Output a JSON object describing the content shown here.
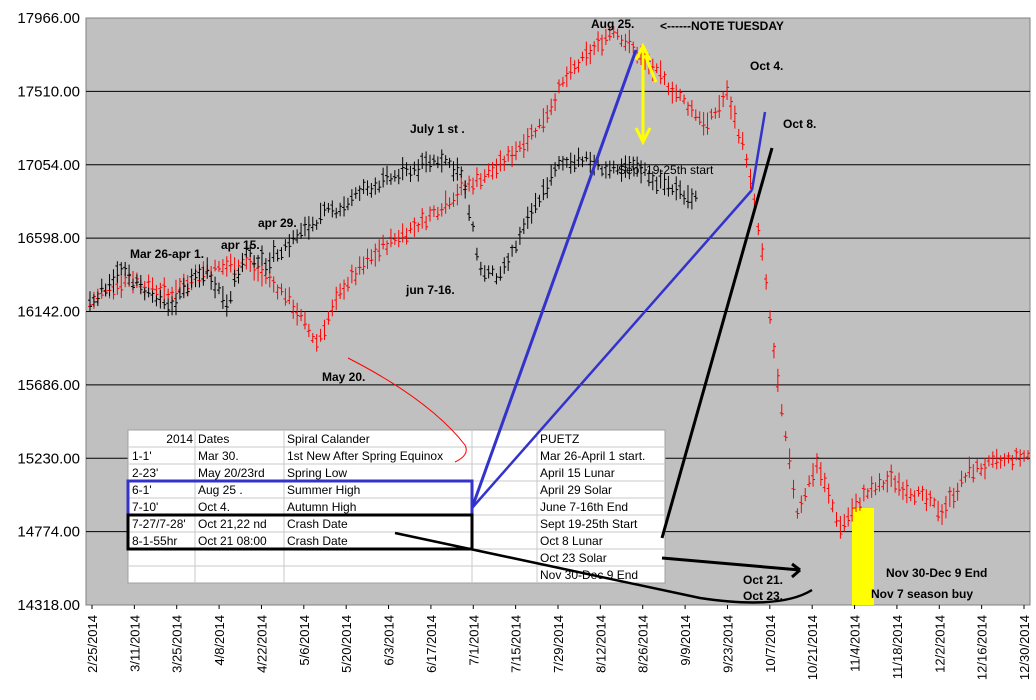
{
  "chart_data": {
    "type": "ohlc",
    "y_ticks": [
      "17966.00",
      "17510.00",
      "17054.00",
      "16598.00",
      "16142.00",
      "15686.00",
      "15230.00",
      "14774.00",
      "14318.00"
    ],
    "ylim": [
      14318,
      17966
    ],
    "x_ticks": [
      "2/25/2014",
      "3/11/2014",
      "3/25/2014",
      "4/8/2014",
      "4/22/2014",
      "5/6/2014",
      "5/20/2014",
      "6/3/2014",
      "6/17/2014",
      "7/1/2014",
      "7/15/2014",
      "7/29/2014",
      "8/12/2014",
      "8/26/2014",
      "9/9/2014",
      "9/23/2014",
      "10/7/2014",
      "10/21/2014",
      "11/4/2014",
      "11/18/2014",
      "12/2/2014",
      "12/16/2014",
      "12/30/2014"
    ],
    "xlim": [
      "2014-02-25",
      "2014-12-30"
    ],
    "grid": true,
    "series": [
      {
        "color": "#ff0000",
        "trading_days": [
          "2014-02-25",
          "2014-12-30"
        ],
        "anchors": [
          [
            0,
            16200
          ],
          [
            10,
            16350
          ],
          [
            20,
            16250
          ],
          [
            30,
            16400
          ],
          [
            40,
            16450
          ],
          [
            50,
            16250
          ],
          [
            58,
            15950
          ],
          [
            65,
            16300
          ],
          [
            75,
            16550
          ],
          [
            85,
            16700
          ],
          [
            95,
            16900
          ],
          [
            105,
            17050
          ],
          [
            115,
            17300
          ],
          [
            122,
            17600
          ],
          [
            130,
            17800
          ],
          [
            134,
            17900
          ],
          [
            142,
            17700
          ],
          [
            150,
            17500
          ],
          [
            158,
            17300
          ],
          [
            163,
            17500
          ],
          [
            168,
            17100
          ],
          [
            172,
            16500
          ],
          [
            177,
            15500
          ],
          [
            181,
            14900
          ],
          [
            186,
            15200
          ],
          [
            192,
            14800
          ],
          [
            198,
            15000
          ],
          [
            205,
            15100
          ],
          [
            212,
            15000
          ],
          [
            218,
            14900
          ],
          [
            225,
            15150
          ],
          [
            232,
            15200
          ],
          [
            240,
            15250
          ]
        ]
      },
      {
        "color": "#000000",
        "trading_days": [
          "2014-02-25",
          "2014-10-08"
        ],
        "anchors": [
          [
            0,
            16200
          ],
          [
            8,
            16400
          ],
          [
            15,
            16250
          ],
          [
            20,
            16150
          ],
          [
            25,
            16300
          ],
          [
            30,
            16400
          ],
          [
            35,
            16200
          ],
          [
            40,
            16500
          ],
          [
            45,
            16450
          ],
          [
            50,
            16550
          ],
          [
            55,
            16650
          ],
          [
            60,
            16750
          ],
          [
            65,
            16800
          ],
          [
            70,
            16900
          ],
          [
            75,
            16950
          ],
          [
            80,
            17000
          ],
          [
            85,
            17050
          ],
          [
            90,
            17100
          ],
          [
            95,
            17000
          ],
          [
            100,
            16400
          ],
          [
            105,
            16350
          ],
          [
            110,
            16600
          ],
          [
            115,
            16850
          ],
          [
            120,
            17050
          ],
          [
            125,
            17100
          ],
          [
            130,
            17050
          ],
          [
            135,
            17000
          ],
          [
            140,
            17050
          ],
          [
            145,
            16950
          ],
          [
            150,
            16900
          ],
          [
            155,
            16850
          ]
        ]
      }
    ]
  },
  "annotations": {
    "aug25": "Aug 25.",
    "note_tuesday": "<------NOTE TUESDAY",
    "oct4": "Oct 4.",
    "oct8": "Oct 8.",
    "july1": "July 1 st .",
    "sept19": "Sept 19-25th start",
    "apr29": "apr 29.",
    "mar26": "Mar 26-apr 1.",
    "apr15": "apr 15.",
    "jun7": "jun 7-16.",
    "may20": "May 20.",
    "oct21": "Oct 21.",
    "oct23": "Oct 23.",
    "nov30": "Nov 30-Dec 9 End",
    "nov7": "Nov 7 season buy"
  },
  "table": {
    "header": [
      "2014",
      "Dates",
      "Spiral Calander",
      "PUETZ"
    ],
    "rows": [
      [
        "1-1'",
        "Mar 30.",
        "1st New After Spring Equinox",
        "Mar 26-April 1 start."
      ],
      [
        "2-23'",
        "May 20/23rd",
        "Spring Low",
        "April 15 Lunar"
      ],
      [
        "6-1'",
        "Aug 25 .",
        "Summer High",
        "April 29 Solar"
      ],
      [
        "7-10'",
        "Oct 4.",
        "Autumn High",
        "June 7-16th End"
      ],
      [
        "7-27/7-28'",
        "Oct 21,22 nd",
        "Crash Date",
        "Sept 19-25th Start"
      ],
      [
        "8-1-55hr",
        "Oct 21 08:00",
        "Crash Date",
        "Oct 8 Lunar"
      ],
      [
        "",
        "",
        "",
        "Oct 23 Solar"
      ],
      [
        "",
        "",
        "",
        "Nov 30-Dec 9 End"
      ]
    ]
  },
  "colors": {
    "plot_bg": "#c0c0c0",
    "red_series": "#ff0000",
    "black_series": "#000000",
    "highlight": "#ffff00",
    "blue_lines": "#3333cc"
  }
}
